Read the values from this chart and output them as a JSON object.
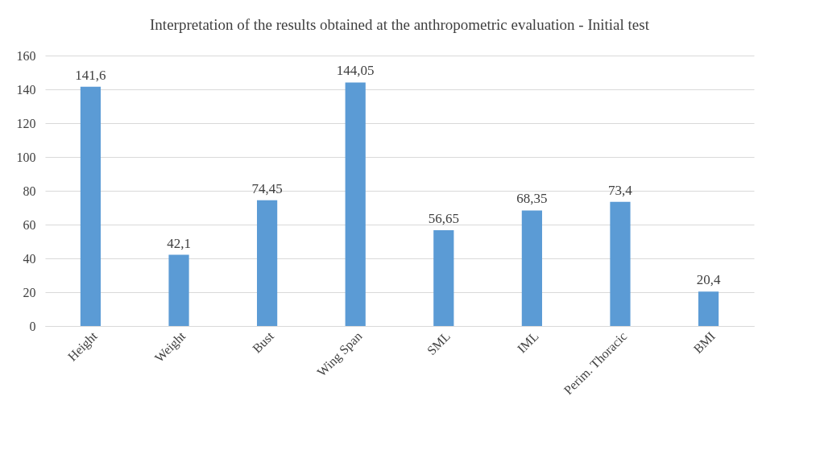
{
  "chart_data": {
    "type": "bar",
    "title": "Interpretation of the results obtained at the anthropometric evaluation - Initial test",
    "categories": [
      "Height",
      "Weight",
      "Bust",
      "Wing Span",
      "SML",
      "IML",
      "Perim. Thoracic",
      "BMI"
    ],
    "values": [
      141.6,
      42.1,
      74.45,
      144.05,
      56.65,
      68.35,
      73.4,
      20.4
    ],
    "value_labels": [
      "141,6",
      "42,1",
      "74,45",
      "144,05",
      "56,65",
      "68,35",
      "73,4",
      "20,4"
    ],
    "color": "#5b9bd5",
    "ylim": [
      0,
      160
    ],
    "yticks": [
      0,
      20,
      40,
      60,
      80,
      100,
      120,
      140,
      160
    ],
    "grid": "y"
  }
}
